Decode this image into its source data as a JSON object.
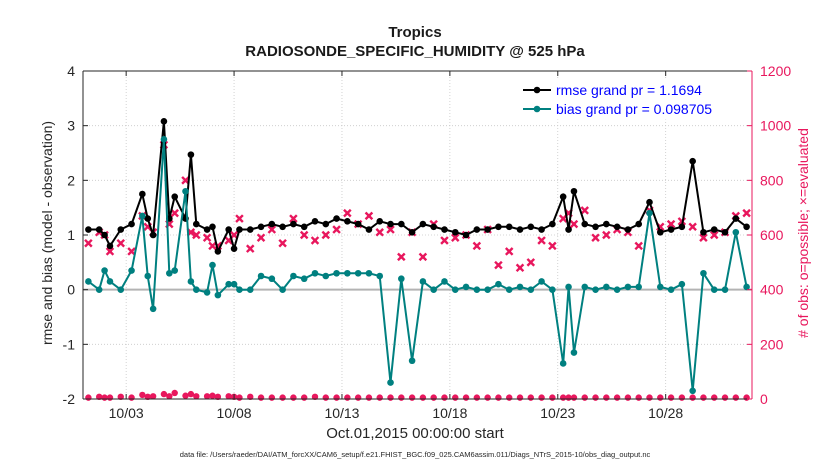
{
  "chart_data": {
    "type": "line",
    "title": "Tropics",
    "subtitle": "RADIOSONDE_SPECIFIC_HUMIDITY @ 525 hPa",
    "xlabel": "Oct.01,2015 00:00:00 start",
    "ylabel": "rmse and bias (model - observation)",
    "ylabel_right": "# of obs: o=possible; ×=evaluated",
    "footer": "data file: /Users/raeder/DAI/ATM_forcXX/CAM6_setup/f.e21.FHIST_BGC.f09_025.CAM6assim.011/Diags_NTrS_2015-10/obs_diag_output.nc",
    "xlim": [
      1,
      32
    ],
    "ylim": [
      -2,
      4
    ],
    "ylim_right": [
      0,
      1200
    ],
    "x_ticks": [
      3,
      8,
      13,
      18,
      23,
      28
    ],
    "x_tick_labels": [
      "10/03",
      "10/08",
      "10/13",
      "10/18",
      "10/23",
      "10/28"
    ],
    "y_ticks": [
      -2,
      -1,
      0,
      1,
      2,
      3,
      4
    ],
    "y_tick_labels": [
      "-2",
      "-1",
      "0",
      "1",
      "2",
      "3",
      "4"
    ],
    "y2_ticks": [
      0,
      200,
      400,
      600,
      800,
      1000,
      1200
    ],
    "y2_tick_labels": [
      "0",
      "200",
      "400",
      "600",
      "800",
      "1000",
      "1200"
    ],
    "legend": {
      "location": "top-right",
      "entries": [
        "rmse grand pr = 1.1694",
        "bias grand pr = 0.098705"
      ]
    },
    "colors": {
      "rmse": "#000000",
      "bias": "#008080",
      "obs": "#e8175d",
      "zero_line": "#b3b3b3",
      "legend_text": "#0000ff"
    },
    "series": [
      {
        "name": "rmse",
        "x": [
          1.25,
          1.75,
          2.0,
          2.25,
          2.75,
          3.25,
          3.75,
          4.0,
          4.25,
          4.75,
          5.0,
          5.25,
          5.75,
          6.0,
          6.25,
          6.75,
          7.0,
          7.25,
          7.75,
          8.0,
          8.25,
          8.75,
          9.25,
          9.75,
          10.25,
          10.75,
          11.25,
          11.75,
          12.25,
          12.75,
          13.25,
          13.75,
          14.25,
          14.75,
          15.25,
          15.75,
          16.25,
          16.75,
          17.25,
          17.75,
          18.25,
          18.75,
          19.25,
          19.75,
          20.25,
          20.75,
          21.25,
          21.75,
          22.25,
          22.75,
          23.25,
          23.5,
          23.75,
          24.25,
          24.75,
          25.25,
          25.75,
          26.25,
          26.75,
          27.25,
          27.75,
          28.25,
          28.75,
          29.25,
          29.75,
          30.25,
          30.75,
          31.25,
          31.75
        ],
        "values": [
          1.1,
          1.1,
          1.0,
          0.8,
          1.1,
          1.2,
          1.75,
          1.3,
          1.0,
          3.08,
          1.3,
          1.7,
          1.3,
          2.47,
          1.2,
          1.1,
          1.15,
          0.7,
          1.1,
          0.75,
          1.1,
          1.1,
          1.15,
          1.2,
          1.15,
          1.2,
          1.15,
          1.25,
          1.2,
          1.3,
          1.25,
          1.2,
          1.1,
          1.25,
          1.2,
          1.2,
          1.05,
          1.2,
          1.15,
          1.1,
          1.05,
          1.0,
          1.1,
          1.1,
          1.15,
          1.15,
          1.1,
          1.15,
          1.1,
          1.2,
          1.7,
          1.1,
          1.8,
          1.2,
          1.15,
          1.2,
          1.15,
          1.1,
          1.2,
          1.6,
          1.05,
          1.1,
          1.15,
          2.35,
          1.05,
          1.1,
          1.05,
          1.3,
          1.15
        ]
      },
      {
        "name": "bias",
        "x": [
          1.25,
          1.75,
          2.0,
          2.25,
          2.75,
          3.25,
          3.75,
          4.0,
          4.25,
          4.75,
          5.0,
          5.25,
          5.75,
          6.0,
          6.25,
          6.75,
          7.0,
          7.25,
          7.75,
          8.0,
          8.25,
          8.75,
          9.25,
          9.75,
          10.25,
          10.75,
          11.25,
          11.75,
          12.25,
          12.75,
          13.25,
          13.75,
          14.25,
          14.75,
          15.25,
          15.75,
          16.25,
          16.75,
          17.25,
          17.75,
          18.25,
          18.75,
          19.25,
          19.75,
          20.25,
          20.75,
          21.25,
          21.75,
          22.25,
          22.75,
          23.25,
          23.5,
          23.75,
          24.25,
          24.75,
          25.25,
          25.75,
          26.25,
          26.75,
          27.25,
          27.75,
          28.25,
          28.75,
          29.25,
          29.75,
          30.25,
          30.75,
          31.25,
          31.75
        ],
        "values": [
          0.15,
          0.0,
          0.35,
          0.15,
          0.0,
          0.35,
          1.35,
          0.25,
          -0.35,
          2.75,
          0.3,
          0.35,
          1.8,
          0.15,
          0.0,
          -0.05,
          0.45,
          -0.1,
          0.1,
          0.1,
          0.0,
          0.0,
          0.25,
          0.2,
          0.0,
          0.25,
          0.2,
          0.3,
          0.25,
          0.3,
          0.3,
          0.3,
          0.3,
          0.25,
          -1.7,
          0.2,
          -1.3,
          0.15,
          0.0,
          0.15,
          0.0,
          0.05,
          0.0,
          0.0,
          0.1,
          0.0,
          0.05,
          0.0,
          0.15,
          0.0,
          -1.35,
          0.05,
          -1.15,
          0.05,
          0.0,
          0.05,
          0.0,
          0.05,
          0.05,
          1.4,
          0.05,
          0.0,
          0.1,
          -1.85,
          0.3,
          0.0,
          0.0,
          1.05,
          0.05
        ]
      },
      {
        "name": "obs possible",
        "marker": "o",
        "x": [
          1.25,
          1.75,
          2.0,
          2.25,
          2.75,
          3.25,
          3.75,
          4.0,
          4.25,
          4.75,
          5.0,
          5.25,
          5.75,
          6.0,
          6.25,
          6.75,
          7.0,
          7.25,
          7.75,
          8.0,
          8.25,
          8.75,
          9.25,
          9.75,
          10.25,
          10.75,
          11.25,
          11.75,
          12.25,
          12.75,
          13.25,
          13.75,
          14.25,
          14.75,
          15.25,
          15.75,
          16.25,
          16.75,
          17.25,
          17.75,
          18.25,
          18.75,
          19.25,
          19.75,
          20.25,
          20.75,
          21.25,
          21.75,
          22.25,
          22.75,
          23.25,
          23.5,
          23.75,
          24.25,
          24.75,
          25.25,
          25.75,
          26.25,
          26.75,
          27.25,
          27.75,
          28.25,
          28.75,
          29.25,
          29.75,
          30.25,
          30.75,
          31.25,
          31.75
        ],
        "values": [
          5,
          8,
          5,
          5,
          8,
          5,
          15,
          8,
          10,
          18,
          10,
          22,
          12,
          18,
          10,
          10,
          12,
          8,
          10,
          8,
          5,
          8,
          5,
          5,
          5,
          5,
          5,
          8,
          5,
          5,
          5,
          5,
          5,
          5,
          5,
          5,
          5,
          5,
          5,
          5,
          5,
          5,
          5,
          5,
          5,
          5,
          5,
          5,
          5,
          5,
          5,
          5,
          5,
          5,
          5,
          5,
          5,
          5,
          5,
          5,
          5,
          5,
          5,
          5,
          5,
          5,
          5,
          5,
          5
        ]
      },
      {
        "name": "obs evaluated",
        "marker": "x",
        "x": [
          1.25,
          1.75,
          2.0,
          2.25,
          2.75,
          3.25,
          3.75,
          4.0,
          4.25,
          4.75,
          5.0,
          5.25,
          5.75,
          6.0,
          6.25,
          6.75,
          7.0,
          7.25,
          7.75,
          8.0,
          8.25,
          8.75,
          9.25,
          9.75,
          10.25,
          10.75,
          11.25,
          11.75,
          12.25,
          12.75,
          13.25,
          13.75,
          14.25,
          14.75,
          15.25,
          15.75,
          16.25,
          16.75,
          17.25,
          17.75,
          18.25,
          18.75,
          19.25,
          19.75,
          20.25,
          20.75,
          21.25,
          21.75,
          22.25,
          22.75,
          23.25,
          23.5,
          23.75,
          24.25,
          24.75,
          25.25,
          25.75,
          26.25,
          26.75,
          27.25,
          27.75,
          28.25,
          28.75,
          29.25,
          29.75,
          30.25,
          30.75,
          31.25,
          31.75
        ],
        "values": [
          570,
          610,
          600,
          540,
          570,
          540,
          670,
          630,
          610,
          930,
          640,
          680,
          800,
          610,
          600,
          590,
          560,
          560,
          580,
          600,
          660,
          550,
          590,
          620,
          570,
          660,
          600,
          580,
          600,
          620,
          680,
          640,
          670,
          610,
          620,
          520,
          610,
          520,
          640,
          580,
          590,
          600,
          560,
          620,
          490,
          540,
          480,
          500,
          580,
          560,
          660,
          680,
          640,
          690,
          590,
          600,
          620,
          610,
          560,
          690,
          630,
          640,
          650,
          630,
          590,
          600,
          610,
          670,
          680
        ]
      }
    ]
  }
}
